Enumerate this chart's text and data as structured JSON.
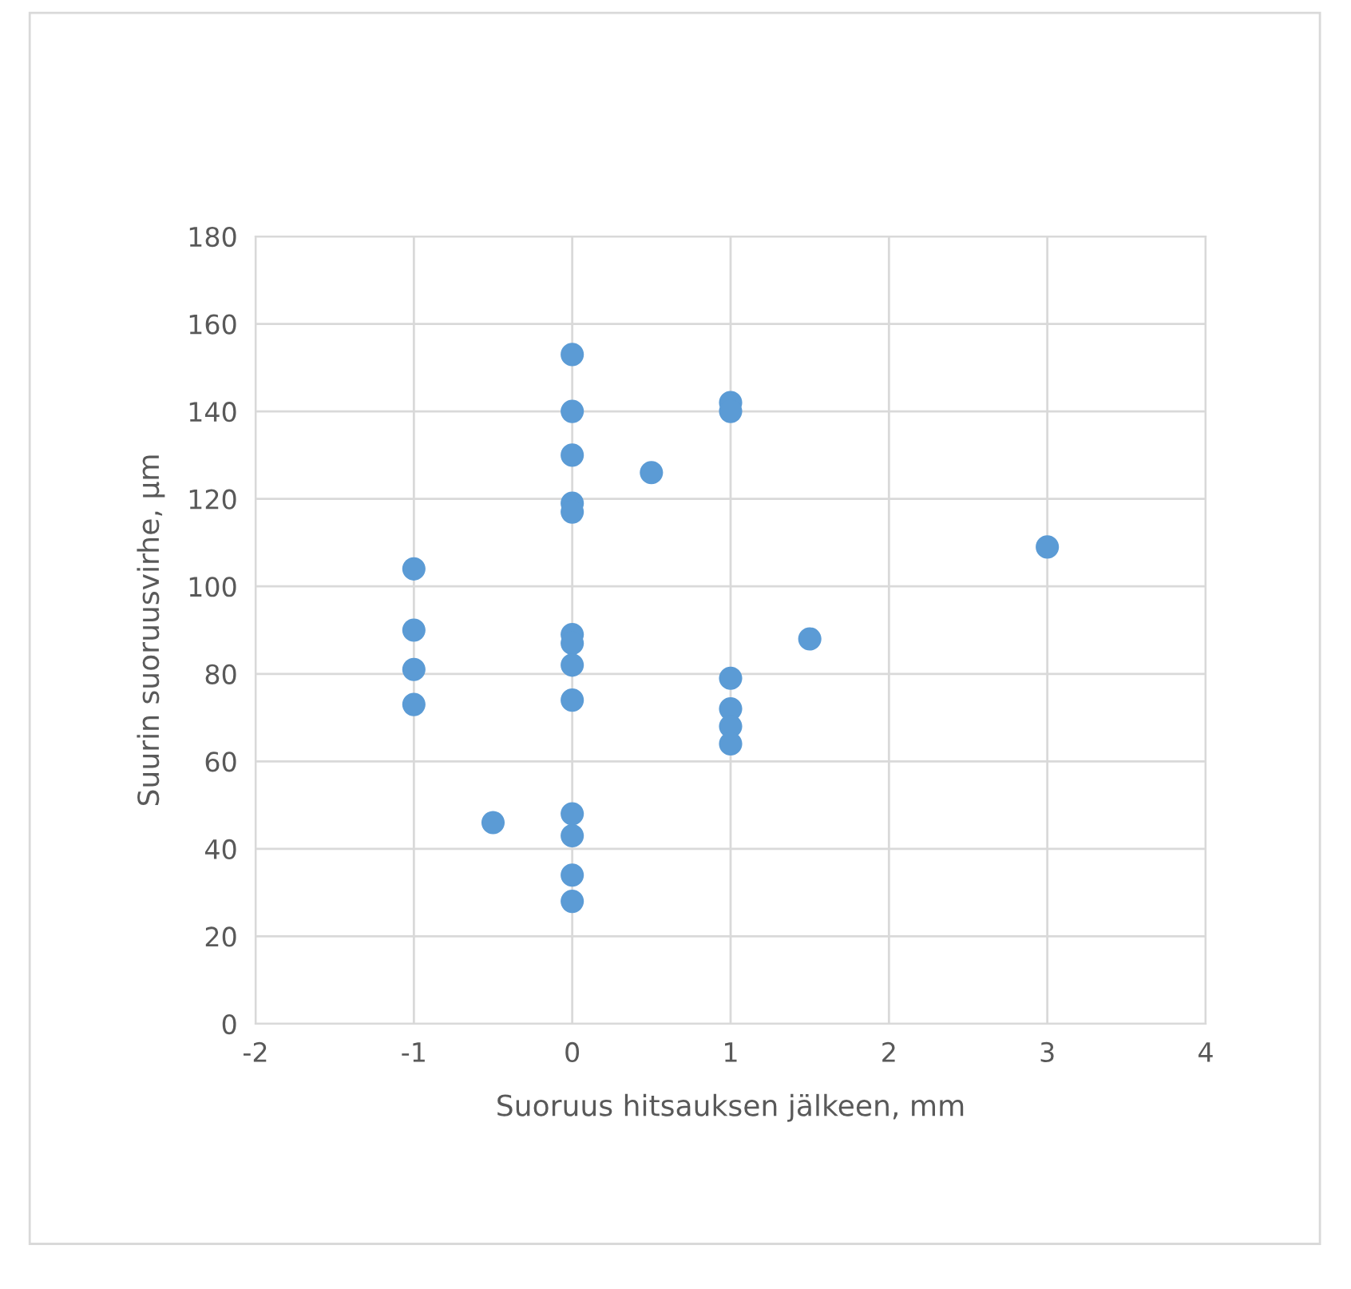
{
  "chart_data": {
    "type": "scatter",
    "xlabel": "Suoruus hitsauksen jälkeen, mm",
    "ylabel": "Suurin suoruusvirhe, µm",
    "x": [
      0,
      0,
      0,
      0,
      0,
      0,
      0,
      0,
      0,
      0,
      0,
      0,
      0,
      1,
      1,
      1,
      1,
      1,
      1,
      -1,
      -1,
      -1,
      -1,
      -0.5,
      0.5,
      1.5,
      3
    ],
    "values": [
      153,
      140,
      130,
      119,
      117,
      89,
      87,
      82,
      74,
      48,
      43,
      34,
      28,
      142,
      140,
      79,
      72,
      68,
      64,
      104,
      90,
      81,
      73,
      46,
      126,
      88,
      109
    ],
    "color": "#5b9bd5",
    "marker": "circle",
    "xlim": [
      -2,
      4
    ],
    "xticks": [
      -2,
      -1,
      0,
      1,
      2,
      3,
      4
    ],
    "ylim": [
      0,
      180
    ],
    "yticks": [
      0,
      20,
      40,
      60,
      80,
      100,
      120,
      140,
      160,
      180
    ],
    "grid": true,
    "legend": false
  }
}
